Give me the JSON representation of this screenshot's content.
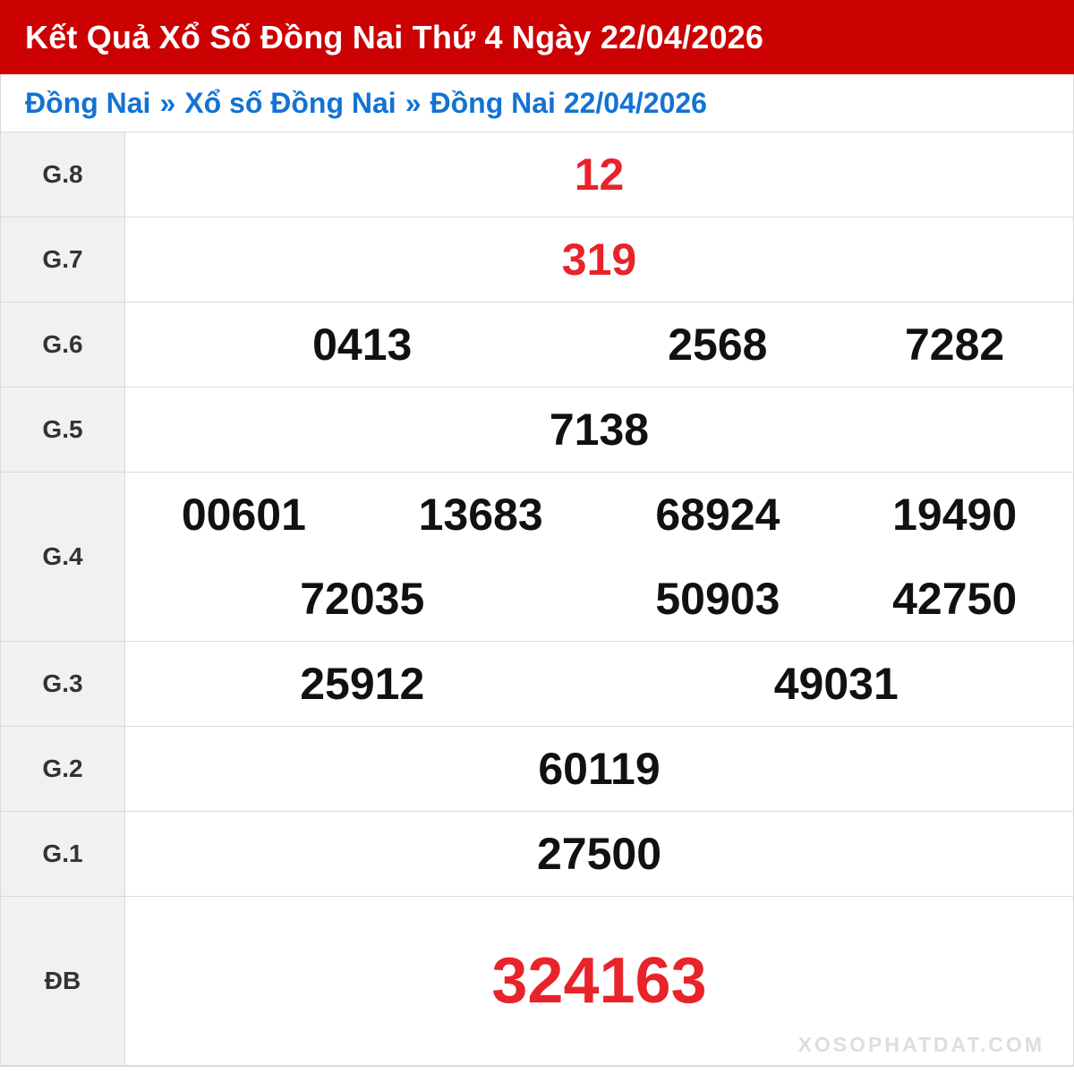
{
  "header": {
    "title": "Kết Quả Xổ Số Đồng Nai Thứ 4 Ngày 22/04/2026"
  },
  "breadcrumb": {
    "separator": "»",
    "items": [
      "Đồng Nai",
      "Xổ số Đồng Nai",
      "Đồng Nai 22/04/2026"
    ]
  },
  "results": {
    "rows": [
      {
        "label": "G.8",
        "red": true,
        "jackpot": false,
        "lines": [
          [
            "12"
          ]
        ]
      },
      {
        "label": "G.7",
        "red": true,
        "jackpot": false,
        "lines": [
          [
            "319"
          ]
        ]
      },
      {
        "label": "G.6",
        "red": false,
        "jackpot": false,
        "lines": [
          [
            "0413",
            "2568",
            "7282"
          ]
        ]
      },
      {
        "label": "G.5",
        "red": false,
        "jackpot": false,
        "lines": [
          [
            "7138"
          ]
        ]
      },
      {
        "label": "G.4",
        "red": false,
        "jackpot": false,
        "lines": [
          [
            "00601",
            "13683",
            "68924",
            "19490"
          ],
          [
            "72035",
            "50903",
            "42750"
          ]
        ]
      },
      {
        "label": "G.3",
        "red": false,
        "jackpot": false,
        "lines": [
          [
            "25912",
            "49031"
          ]
        ]
      },
      {
        "label": "G.2",
        "red": false,
        "jackpot": false,
        "lines": [
          [
            "60119"
          ]
        ]
      },
      {
        "label": "G.1",
        "red": false,
        "jackpot": false,
        "lines": [
          [
            "27500"
          ]
        ]
      },
      {
        "label": "ĐB",
        "red": true,
        "jackpot": true,
        "lines": [
          [
            "324163"
          ]
        ]
      }
    ]
  },
  "watermark": "XOSOPHATDAT.COM",
  "colors": {
    "header_bg": "#cb0102",
    "link_blue": "#1273d4",
    "number_red": "#e8232a",
    "label_bg": "#f1f1f1",
    "border": "#d9d9d9",
    "label_text": "#333333",
    "number_black": "#111111",
    "watermark_gray": "#dedede"
  }
}
